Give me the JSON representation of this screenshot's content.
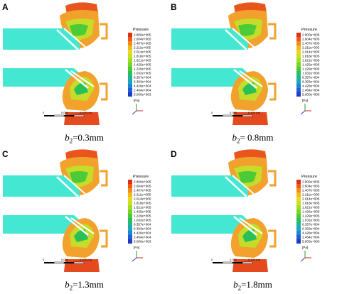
{
  "legend": {
    "title": "Pressure",
    "labels": [
      "2.800e+005",
      "2.604e+005",
      "2.407e+005",
      "2.211e+005",
      "2.014e+005",
      "1.818e+005",
      "1.621e+005",
      "1.425e+005",
      "1.229e+005",
      "1.032e+005",
      "8.357e+004",
      "6.393e+004",
      "4.428e+004",
      "2.464e+004",
      "5.000e+003"
    ],
    "unit": "[Pa]",
    "colors": [
      "#e03010",
      "#ee5a18",
      "#f58a1c",
      "#f7b81f",
      "#e9d81f",
      "#c9e21e",
      "#a2df22",
      "#78d628",
      "#4ccb36",
      "#29c058",
      "#1fb592",
      "#1ba6c6",
      "#1b86d8",
      "#1e5fd6",
      "#1f3ac8"
    ]
  },
  "panels": [
    {
      "letter": "A",
      "caption_var": "b",
      "caption_sub": "2",
      "caption_val": "=0.3mm"
    },
    {
      "letter": "B",
      "caption_var": "b",
      "caption_sub": "2",
      "caption_val": "= 0.8mm"
    },
    {
      "letter": "C",
      "caption_var": "b",
      "caption_sub": "2",
      "caption_val": "=1.3mm"
    },
    {
      "letter": "D",
      "caption_var": "b",
      "caption_sub": "2",
      "caption_val": "=1.8mm"
    }
  ],
  "scale_bar": {
    "left": "0",
    "mid": "0.050",
    "right": "0.100 (m)"
  },
  "colors": {
    "inlet": "#44e8d2",
    "volute": "#f2a22c",
    "outlet": "#e54a1e",
    "hub": "#ffffff"
  }
}
